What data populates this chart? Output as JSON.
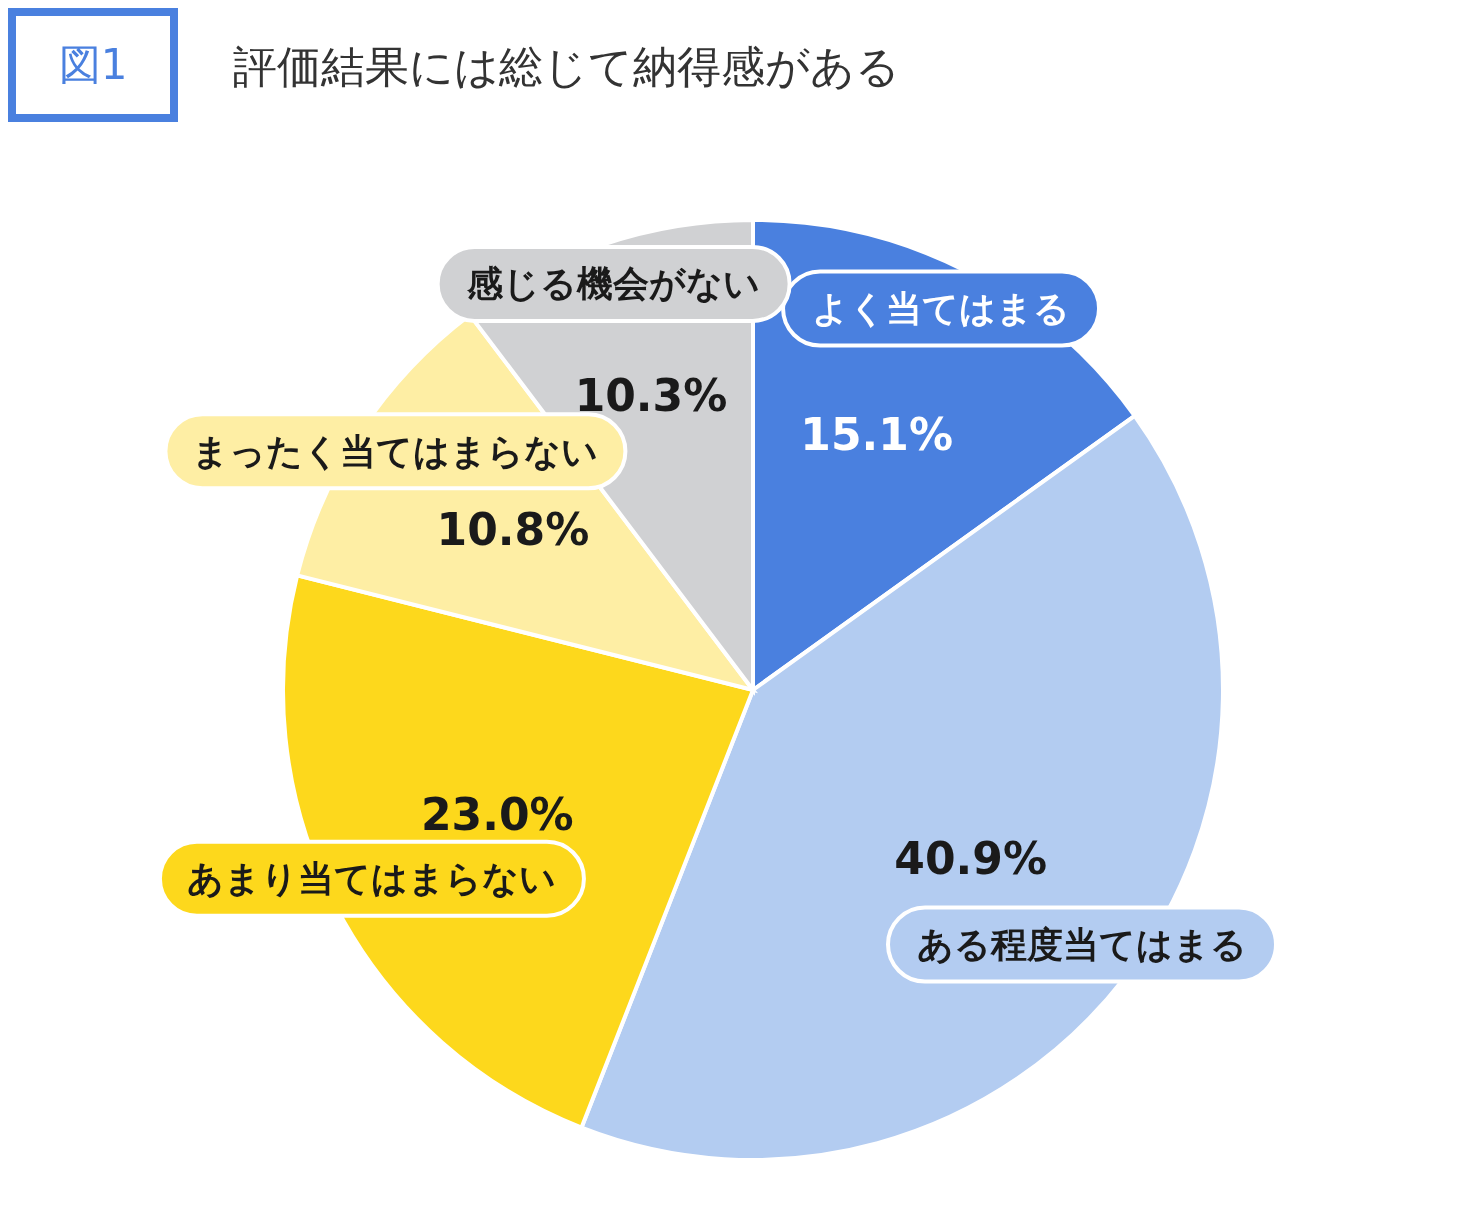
{
  "chart_data": {
    "type": "pie",
    "title": "評価結果には総じて納得感がある",
    "annotations": [
      "図1"
    ],
    "categories": [
      "よく当てはまる",
      "ある程度当てはまる",
      "あまり当てはまらない",
      "まったく当てはまらない",
      "感じる機会がない"
    ],
    "values": [
      15.1,
      40.9,
      23.0,
      10.8,
      10.3
    ],
    "colors": [
      "#4a80df",
      "#b3ccf1",
      "#fdd81c",
      "#feeea4",
      "#d0d1d3"
    ],
    "value_labels": [
      "15.1%",
      "40.9%",
      "23.0%",
      "10.8%",
      "10.3%"
    ]
  }
}
